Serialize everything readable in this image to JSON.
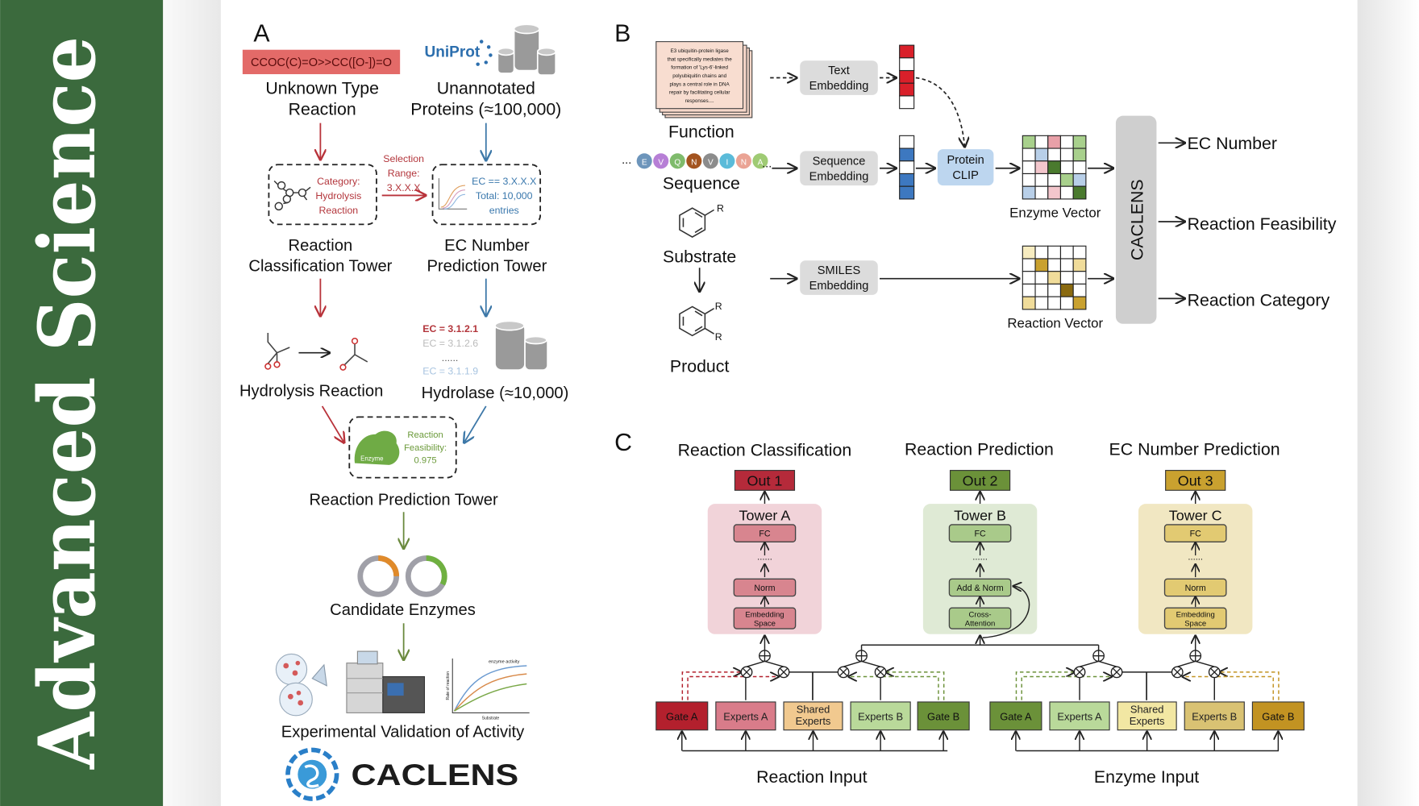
{
  "banner": {
    "text": "Advanced Science",
    "color": "#3b6a3d"
  },
  "panel_a": {
    "label": "A",
    "smiles": "CCOC(C)=O>>CC([O-])=O",
    "uniprot": "UniProt",
    "unknown": [
      "Unknown Type",
      "Reaction"
    ],
    "unannotated": [
      "Unannotated",
      "Proteins (≈100,000)"
    ],
    "category": [
      "Category:",
      "Hydrolysis",
      "Reaction"
    ],
    "selection": [
      "Selection",
      "Range:",
      "3.X.X.X"
    ],
    "ec_box": [
      "EC == 3.X.X.X",
      "Total: 10,000",
      "entries"
    ],
    "classification_tower": [
      "Reaction",
      "Classification Tower"
    ],
    "ec_tower": [
      "EC Number",
      "Prediction Tower"
    ],
    "hydrolysis": "Hydrolysis Reaction",
    "ec_list": [
      "EC = 3.1.2.1",
      "EC = 3.1.2.6",
      "......",
      "EC = 3.1.1.9"
    ],
    "hydrolase": "Hydrolase (≈10,000)",
    "enzyme": "Enzyme",
    "feasibility": [
      "Reaction",
      "Feasibility:",
      "0.975"
    ],
    "prediction_tower": "Reaction Prediction Tower",
    "candidates": "Candidate Enzymes",
    "activity_chart": {
      "title": "enzyme activity",
      "ylabel": "Rate of reaction",
      "xlabel": "Substrate"
    },
    "validation": "Experimental Validation of Activity",
    "logo": "CACLENS"
  },
  "panel_b": {
    "label": "B",
    "function_text": [
      "E3 ubiquitin-protein ligase",
      "that specifically mediates the",
      "formation of 'Lys-6'-linked",
      "polyubiquitin chains and",
      "plays a central role in DNA",
      "repair by facilitating cellular",
      "responses...."
    ],
    "function": "Function",
    "sequence_letters": [
      {
        "l": "E",
        "c": "#6d95bb"
      },
      {
        "l": "V",
        "c": "#b77fd6"
      },
      {
        "l": "Q",
        "c": "#7fbb6c"
      },
      {
        "l": "N",
        "c": "#a3541f"
      },
      {
        "l": "V",
        "c": "#8c8c8c"
      },
      {
        "l": "I",
        "c": "#5bbbd9"
      },
      {
        "l": "N",
        "c": "#eaa394"
      },
      {
        "l": "A",
        "c": "#9fcb74"
      }
    ],
    "ellipsis": "...",
    "sequence": "Sequence",
    "substrate": "Substrate",
    "product": "Product",
    "r": "R",
    "text_embedding": [
      "Text",
      "Embedding"
    ],
    "sequence_embedding": [
      "Sequence",
      "Embedding"
    ],
    "smiles_embedding": [
      "SMILES",
      "Embedding"
    ],
    "protein_clip": [
      "Protein",
      "CLIP"
    ],
    "enzyme_vector": "Enzyme Vector",
    "reaction_vector": "Reaction Vector",
    "caclens": "CACLENS",
    "outputs": [
      "EC Number",
      "Reaction Feasibility",
      "Reaction Category"
    ],
    "colors": {
      "text_vec": "#d9202a",
      "seq_vec": "#3d78c0",
      "clip": "#bdd6ef"
    }
  },
  "panel_c": {
    "label": "C",
    "titles": [
      "Reaction Classification",
      "Reaction Prediction",
      "EC Number Prediction"
    ],
    "outs": [
      {
        "label": "Out 1",
        "c": "#b52a3a"
      },
      {
        "label": "Out 2",
        "c": "#6b9139"
      },
      {
        "label": "Out 3",
        "c": "#c9a12f"
      }
    ],
    "towers": [
      {
        "title": "Tower A",
        "bg": "#f1d3d9",
        "fill": "#d8858f",
        "layers": [
          "FC",
          "Norm",
          "Embedding Space"
        ]
      },
      {
        "title": "Tower B",
        "bg": "#dfead5",
        "fill": "#a9ca8a",
        "layers": [
          "FC",
          "Add & Norm",
          "Cross-Attention"
        ]
      },
      {
        "title": "Tower C",
        "bg": "#f1e7c2",
        "fill": "#e2ca72",
        "layers": [
          "FC",
          "Norm",
          "Embedding Space"
        ]
      }
    ],
    "dots": "......",
    "reaction_modules": [
      {
        "label": "Gate A",
        "c": "#b3202d"
      },
      {
        "label": "Experts A",
        "c": "#d97c8a"
      },
      {
        "label": "Shared Experts",
        "c": "#f1c98f"
      },
      {
        "label": "Experts B",
        "c": "#b9d99a"
      },
      {
        "label": "Gate B",
        "c": "#6b9139"
      }
    ],
    "enzyme_modules": [
      {
        "label": "Gate A",
        "c": "#6b9139"
      },
      {
        "label": "Experts A",
        "c": "#b9d99a"
      },
      {
        "label": "Shared Experts",
        "c": "#f2e7a3"
      },
      {
        "label": "Experts B",
        "c": "#d9c273"
      },
      {
        "label": "Gate B",
        "c": "#c29322"
      }
    ],
    "reaction_input": "Reaction Input",
    "enzyme_input": "Enzyme Input"
  }
}
